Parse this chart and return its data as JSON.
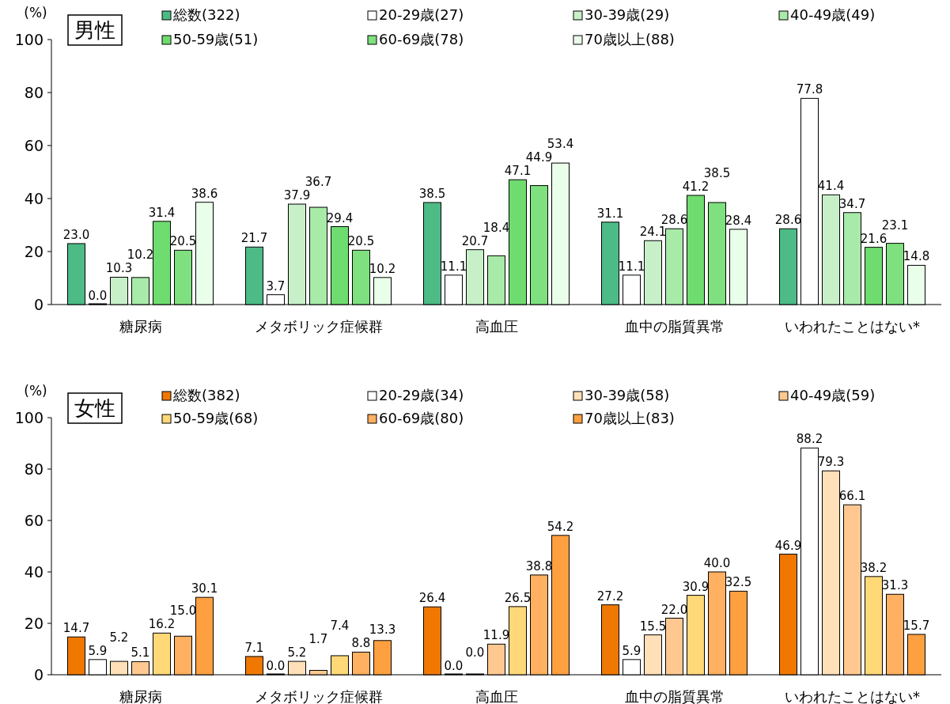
{
  "chart_data": [
    {
      "type": "bar",
      "title": "男性",
      "ylabel": "(%)",
      "categories": [
        "糖尿病",
        "メタボリック症候群",
        "高血圧",
        "血中の脂質異常",
        "いわれたことはない*"
      ],
      "ylim": [
        0,
        100
      ],
      "yticks": [
        0,
        20,
        40,
        60,
        80,
        100
      ],
      "legend": "top",
      "grid": false,
      "series": [
        {
          "name": "総数(322)",
          "color": "#4dbb85",
          "values": [
            23.0,
            21.7,
            38.5,
            31.1,
            28.6
          ],
          "value_labels": [
            "23.0",
            "21.7",
            "38.5",
            "31.1",
            "28.6"
          ]
        },
        {
          "name": "20-29歳(27)",
          "color": "#ffffff",
          "values": [
            0.0,
            3.7,
            11.1,
            11.1,
            77.8
          ],
          "value_labels": [
            "0.0",
            "3.7",
            "11.1",
            "11.1",
            "77.8"
          ]
        },
        {
          "name": "30-39歳(29)",
          "color": "#c8f0c8",
          "values": [
            10.3,
            37.9,
            20.7,
            24.1,
            41.4
          ],
          "value_labels": [
            "10.3",
            "37.9",
            "20.7",
            "24.1",
            "41.4"
          ]
        },
        {
          "name": "40-49歳(49)",
          "color": "#a8eaa8",
          "values": [
            10.2,
            36.7,
            18.4,
            28.6,
            34.7
          ],
          "value_labels": [
            "10.2",
            "36.7",
            "18.4",
            "28.6",
            "34.7"
          ]
        },
        {
          "name": "50-59歳(51)",
          "color": "#6fdc6f",
          "values": [
            31.4,
            29.4,
            47.1,
            41.2,
            21.6
          ],
          "value_labels": [
            "31.4",
            "29.4",
            "47.1",
            "41.2",
            "21.6"
          ]
        },
        {
          "name": "60-69歳(78)",
          "color": "#7ee07e",
          "values": [
            20.5,
            20.5,
            44.9,
            38.5,
            23.1
          ],
          "value_labels": [
            "20.5",
            "20.5",
            "44.9",
            "38.5",
            "23.1"
          ]
        },
        {
          "name": "70歳以上(88)",
          "color": "#eaffea",
          "values": [
            38.6,
            10.2,
            53.4,
            28.4,
            14.8
          ],
          "value_labels": [
            "38.6",
            "10.2",
            "53.4",
            "28.4",
            "14.8"
          ]
        }
      ]
    },
    {
      "type": "bar",
      "title": "女性",
      "ylabel": "(%)",
      "categories": [
        "糖尿病",
        "メタボリック症候群",
        "高血圧",
        "血中の脂質異常",
        "いわれたことはない*"
      ],
      "ylim": [
        0,
        100
      ],
      "yticks": [
        0,
        20,
        40,
        60,
        80,
        100
      ],
      "legend": "top",
      "grid": false,
      "series": [
        {
          "name": "総数(382)",
          "color": "#f07800",
          "values": [
            14.7,
            7.1,
            26.4,
            27.2,
            46.9
          ],
          "value_labels": [
            "14.7",
            "7.1",
            "26.4",
            "27.2",
            "46.9"
          ]
        },
        {
          "name": "20-29歳(34)",
          "color": "#ffffff",
          "values": [
            5.9,
            0.0,
            0.0,
            5.9,
            88.2
          ],
          "value_labels": [
            "5.9",
            "0.0",
            "0.0",
            "5.9",
            "88.2"
          ]
        },
        {
          "name": "30-39歳(58)",
          "color": "#ffe0b8",
          "values": [
            5.2,
            5.2,
            0.0,
            15.5,
            79.3
          ],
          "value_labels": [
            "5.2",
            "5.2",
            "0.0",
            "15.5",
            "79.3"
          ]
        },
        {
          "name": "40-49歳(59)",
          "color": "#ffc890",
          "values": [
            5.1,
            1.7,
            11.9,
            22.0,
            66.1
          ],
          "value_labels": [
            "5.1",
            "1.7",
            "11.9",
            "22.0",
            "66.1"
          ]
        },
        {
          "name": "50-59歳(68)",
          "color": "#ffd878",
          "values": [
            16.2,
            7.4,
            26.5,
            30.9,
            38.2
          ],
          "value_labels": [
            "16.2",
            "7.4",
            "26.5",
            "30.9",
            "38.2"
          ]
        },
        {
          "name": "60-69歳(80)",
          "color": "#ffb060",
          "values": [
            15.0,
            8.8,
            38.8,
            40.0,
            31.3
          ],
          "value_labels": [
            "15.0",
            "8.8",
            "38.8",
            "40.0",
            "31.3"
          ]
        },
        {
          "name": "70歳以上(83)",
          "color": "#ffa040",
          "values": [
            30.1,
            13.3,
            54.2,
            32.5,
            15.7
          ],
          "value_labels": [
            "30.1",
            "13.3",
            "54.2",
            "32.5",
            "15.7"
          ]
        }
      ]
    }
  ]
}
